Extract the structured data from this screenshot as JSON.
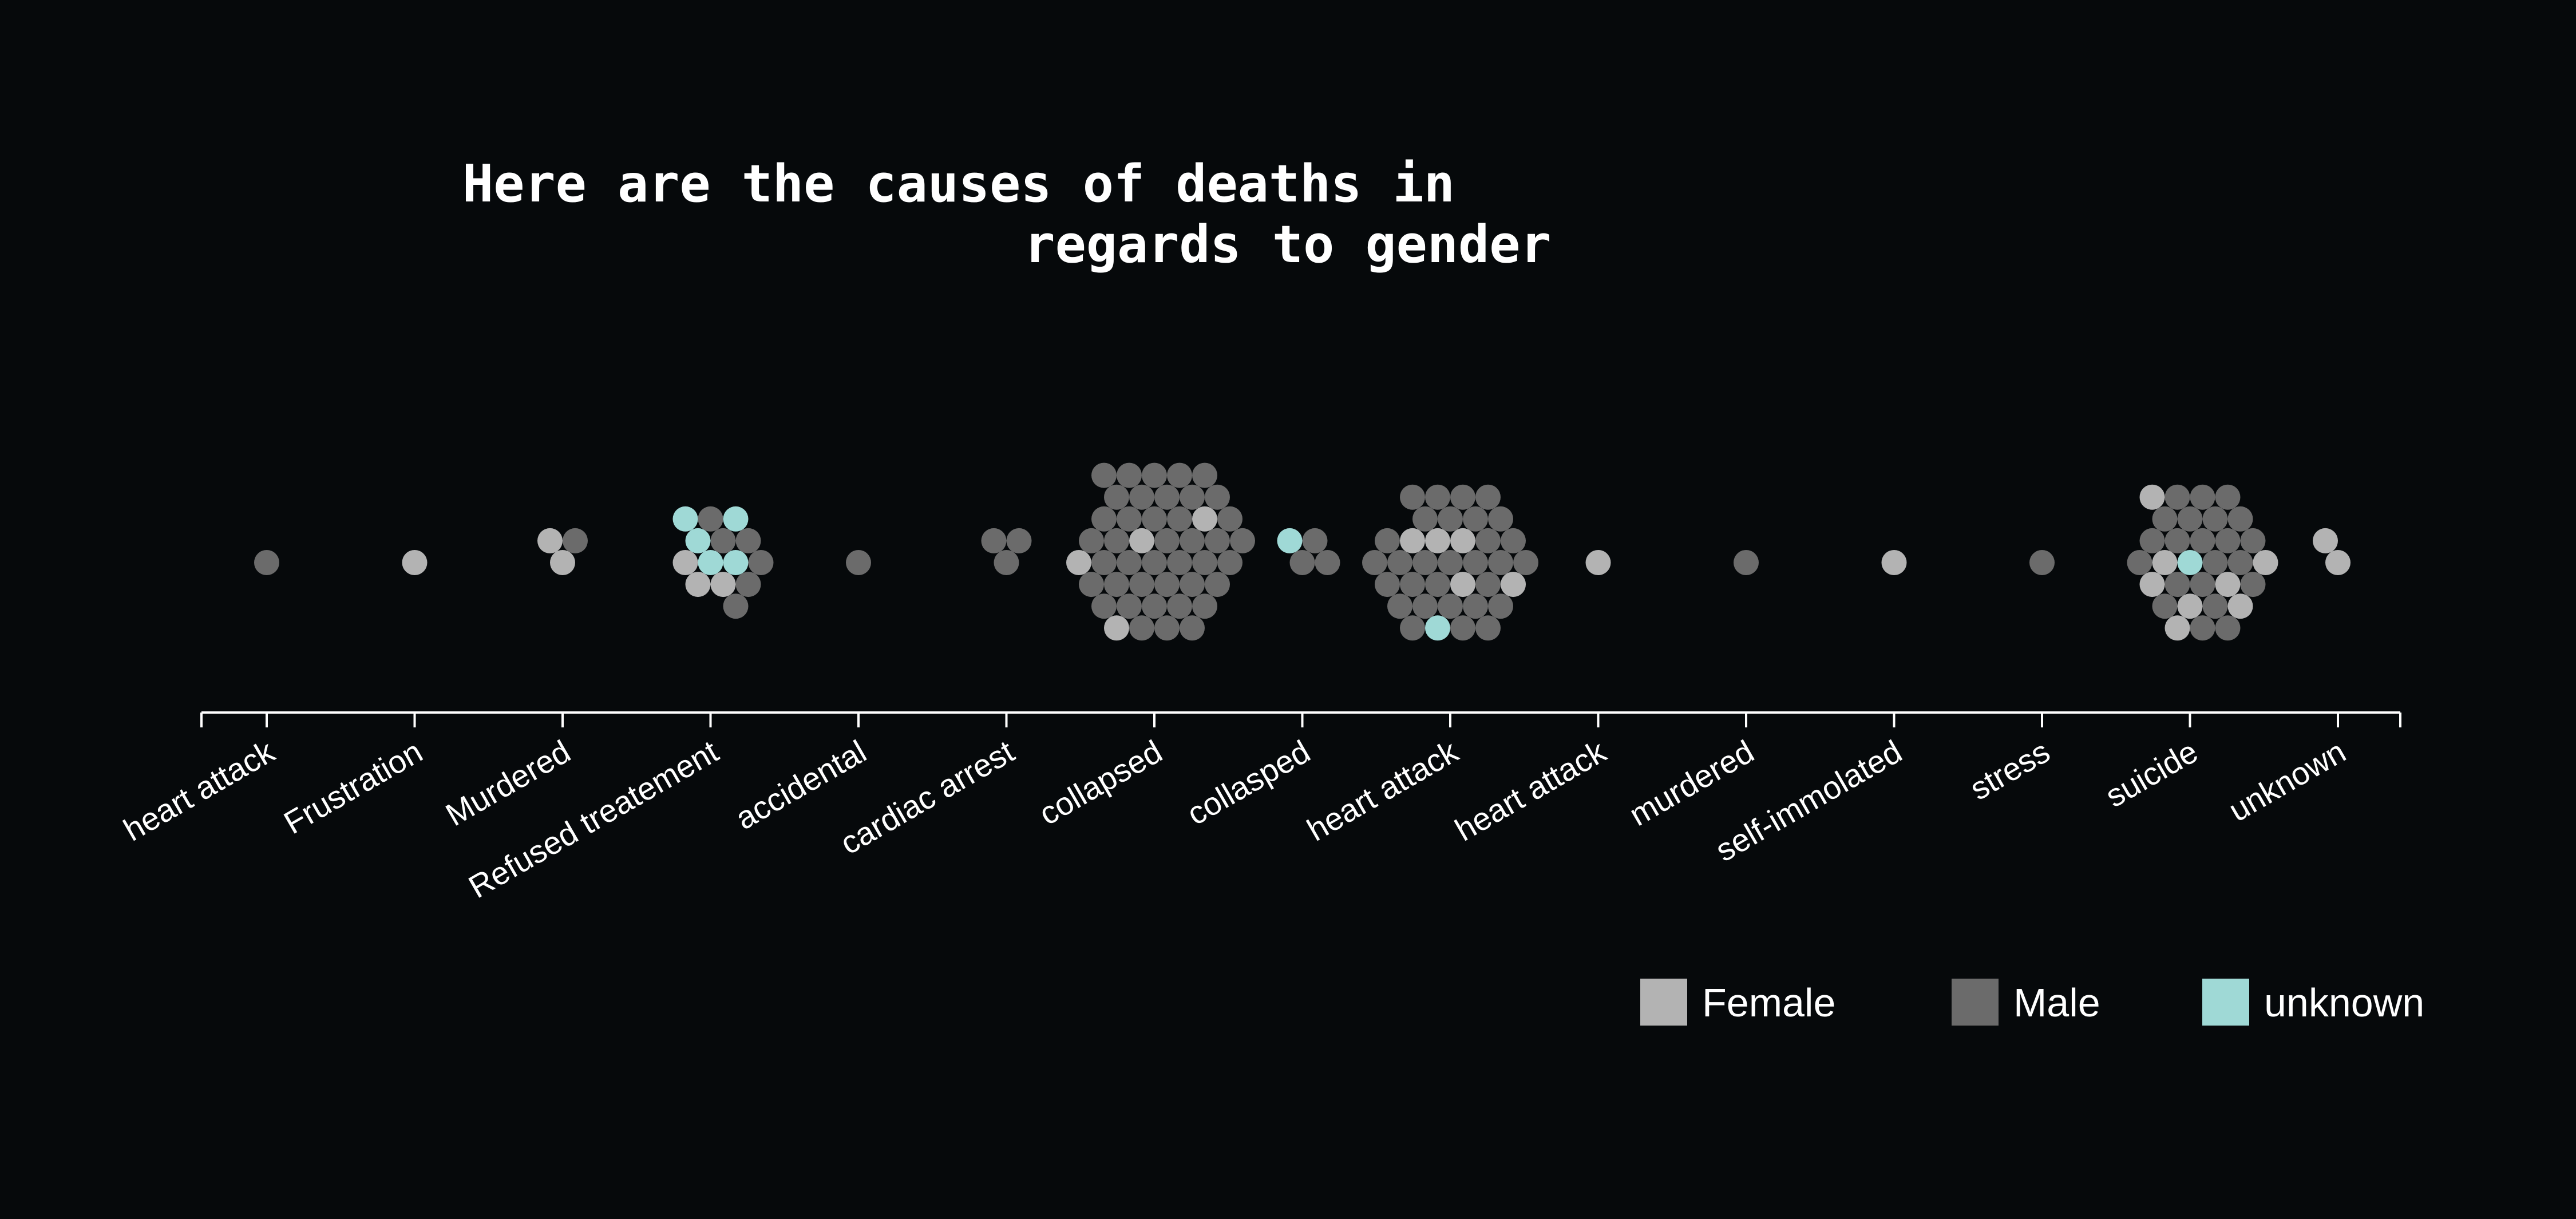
{
  "chart_data": {
    "type": "scatter",
    "subtype": "beeswarm",
    "title": "Here are the causes of deaths in regards to gender",
    "title_lines": [
      "Here are the causes of deaths in",
      "regards to gender"
    ],
    "xlabel": "",
    "ylabel": "",
    "grid": false,
    "legend_position": "bottom-right",
    "categories": [
      "heart attack ",
      "Frustration",
      "Murdered",
      "Refused treatement",
      "accidental",
      "cardiac arrest",
      "collapsed",
      "collasped",
      "heart attack",
      "heart attack  ",
      "murdered",
      "self-immolated",
      "stress",
      "suicide",
      "unknown"
    ],
    "series": [
      {
        "name": "Female",
        "color": "#b3b3b3",
        "values": [
          0,
          1,
          2,
          3,
          0,
          0,
          4,
          0,
          5,
          1,
          0,
          1,
          0,
          8,
          2
        ]
      },
      {
        "name": "Male",
        "color": "#6b6b6b",
        "values": [
          1,
          0,
          1,
          6,
          1,
          3,
          41,
          3,
          30,
          0,
          1,
          0,
          1,
          22,
          0
        ]
      },
      {
        "name": "unknown",
        "color": "#9fd9d6",
        "values": [
          0,
          0,
          0,
          5,
          0,
          0,
          0,
          1,
          1,
          0,
          0,
          0,
          0,
          1,
          0
        ]
      }
    ]
  }
}
